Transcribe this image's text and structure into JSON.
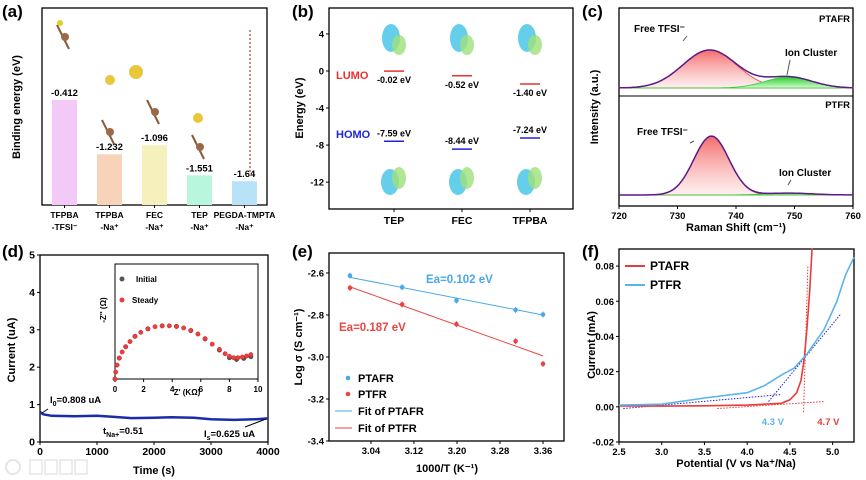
{
  "panel_labels": [
    "(a)",
    "(b)",
    "(c)",
    "(d)",
    "(e)",
    "(f)"
  ],
  "watermark": "大数跨境",
  "chart_data": [
    {
      "panel": "(a)",
      "type": "bar",
      "ylabel": "Binding energy (eV)",
      "ylim": [
        -2.0,
        0.98
      ],
      "categories": [
        [
          "TFPBA",
          "-TFSI⁻"
        ],
        [
          "TFPBA",
          "-Na⁺"
        ],
        [
          "FEC",
          "-Na⁺"
        ],
        [
          "TEP",
          "-Na⁺"
        ],
        [
          "PEGDA-TMPTA",
          "-Na⁺"
        ]
      ],
      "values": [
        -0.412,
        -1.232,
        -1.096,
        -1.551,
        -1.64
      ],
      "value_labels": [
        "-0.412",
        "-1.232",
        "-1.096",
        "-1.551",
        "-1.64"
      ],
      "colors": [
        "#f2c9f7",
        "#f8d3ba",
        "#f6f1bc",
        "#b8f6dd",
        "#b8e2f8"
      ]
    },
    {
      "panel": "(b)",
      "type": "level-diagram",
      "ylabel": "Energy (eV)",
      "ylim": [
        -14.9,
        6.8
      ],
      "y_tick_labels": [
        "4",
        "0",
        "-4",
        "-8",
        "-12"
      ],
      "categories": [
        "TEP",
        "FEC",
        "TFPBA"
      ],
      "lumo_label": "LUMO",
      "homo_label": "HOMO",
      "lumo": [
        -0.02,
        -0.52,
        -1.4
      ],
      "lumo_labels": [
        "-0.02 eV",
        "-0.52 eV",
        "-1.40 eV"
      ],
      "homo": [
        -7.59,
        -8.44,
        -7.24
      ],
      "homo_labels": [
        "-7.59 eV",
        "-8.44 eV",
        "-7.24 eV"
      ],
      "colors": {
        "lumo": "#e8322f",
        "homo": "#2323d6"
      }
    },
    {
      "panel": "(c)",
      "type": "line",
      "xlabel": "Raman Shift (cm⁻¹)",
      "ylabel": "Intensity (a.u.)",
      "xlim": [
        720,
        760
      ],
      "x_tick_labels": [
        "720",
        "730",
        "740",
        "750",
        "760"
      ],
      "series": [
        {
          "name": "PTAFR",
          "peaks": [
            {
              "label": "Free TFSI⁻",
              "center": 735.5,
              "height": 1.0,
              "sigma": 4.6
            },
            {
              "label": "Ion Cluster",
              "center": 749,
              "height": 0.29,
              "sigma": 4.0
            }
          ]
        },
        {
          "name": "PTFR",
          "peaks": [
            {
              "label": "Free TFSI⁻",
              "center": 735.8,
              "height": 1.55,
              "sigma": 3.0
            },
            {
              "label": "Ion Cluster",
              "center": 749,
              "height": 0.05,
              "sigma": 4.0
            }
          ]
        }
      ],
      "colors": {
        "envelope": "#5b1a86",
        "free": "#ee3b3b",
        "cluster": "#2ed12e"
      }
    },
    {
      "panel": "(d)",
      "type": "line",
      "xlabel": "Time (s)",
      "ylabel": "Current (uA)",
      "xlim": [
        0,
        4000
      ],
      "ylim": [
        0,
        5
      ],
      "x_tick_labels": [
        "0",
        "1000",
        "2000",
        "3000",
        "4000"
      ],
      "y_tick_labels": [
        "0",
        "1",
        "2",
        "3",
        "4",
        "5"
      ],
      "series": [
        {
          "name": "Current",
          "color": "#1c2ca8",
          "points": [
            [
              0,
              0.8
            ],
            [
              60,
              0.74
            ],
            [
              200,
              0.7
            ],
            [
              600,
              0.69
            ],
            [
              1000,
              0.7
            ],
            [
              1300,
              0.67
            ],
            [
              1600,
              0.64
            ],
            [
              2000,
              0.65
            ],
            [
              2300,
              0.66
            ],
            [
              2700,
              0.65
            ],
            [
              3000,
              0.61
            ],
            [
              3400,
              0.59
            ],
            [
              3800,
              0.61
            ],
            [
              4000,
              0.63
            ]
          ]
        }
      ],
      "annotations": {
        "i0": {
          "main": "I",
          "sub": "0",
          "rest": "=0.808 uA"
        },
        "t": {
          "main": "t",
          "sub": "Na+",
          "rest": "=0.51"
        },
        "is": {
          "main": "I",
          "sub": "s",
          "rest": "=0.625 uA"
        }
      },
      "inset": {
        "type": "scatter",
        "xlabel": "Z' (KΩ)",
        "ylabel": "-Z'' (Ω)",
        "xlim": [
          0,
          10
        ],
        "ylim": [
          0,
          6.6
        ],
        "x_tick_labels": [
          "0",
          "2",
          "4",
          "6",
          "8",
          "10"
        ],
        "series": [
          {
            "name": "Initial",
            "color": "#555555",
            "points": [
              [
                0,
                0
              ],
              [
                0.3,
                1.2
              ],
              [
                0.75,
                1.85
              ],
              [
                1.4,
                2.45
              ],
              [
                2.3,
                2.88
              ],
              [
                3.3,
                3.05
              ],
              [
                4.3,
                3.02
              ],
              [
                5.3,
                2.78
              ],
              [
                6.3,
                2.3
              ],
              [
                7.3,
                1.66
              ],
              [
                8.0,
                1.22
              ],
              [
                8.5,
                1.12
              ],
              [
                9.0,
                1.18
              ],
              [
                9.5,
                1.28
              ]
            ]
          },
          {
            "name": "Steady",
            "color": "#e84040",
            "points": [
              [
                0,
                0
              ],
              [
                0.05,
                0.4
              ],
              [
                0.15,
                0.8
              ],
              [
                0.3,
                1.2
              ],
              [
                0.5,
                1.55
              ],
              [
                0.75,
                1.85
              ],
              [
                1.05,
                2.15
              ],
              [
                1.4,
                2.45
              ],
              [
                1.8,
                2.68
              ],
              [
                2.3,
                2.88
              ],
              [
                2.8,
                3.0
              ],
              [
                3.3,
                3.05
              ],
              [
                3.8,
                3.05
              ],
              [
                4.3,
                3.02
              ],
              [
                4.8,
                2.93
              ],
              [
                5.3,
                2.78
              ],
              [
                5.8,
                2.58
              ],
              [
                6.3,
                2.32
              ],
              [
                6.8,
                2.0
              ],
              [
                7.3,
                1.7
              ],
              [
                7.7,
                1.45
              ],
              [
                8.0,
                1.3
              ],
              [
                8.3,
                1.22
              ],
              [
                8.6,
                1.22
              ],
              [
                8.9,
                1.26
              ],
              [
                9.2,
                1.32
              ],
              [
                9.5,
                1.4
              ]
            ]
          }
        ]
      }
    },
    {
      "panel": "(e)",
      "type": "scatter",
      "xlabel": "1000/T (K⁻¹)",
      "ylabel": "Log σ (S cm⁻¹)",
      "xlim": [
        2.962,
        3.399
      ],
      "ylim": [
        -3.4,
        -2.505
      ],
      "x_tick_labels": [
        "3.04",
        "3.12",
        "3.20",
        "3.28",
        "3.36"
      ],
      "y_tick_labels": [
        "-2.6",
        "-2.8",
        "-3.0",
        "-3.2",
        "-3.4"
      ],
      "series": [
        {
          "name": "PTAFR",
          "color": "#4aa8e8",
          "x": [
            3.001,
            3.098,
            3.199,
            3.309,
            3.36
          ],
          "y": [
            -2.613,
            -2.668,
            -2.731,
            -2.776,
            -2.798
          ],
          "fit": [
            [
              3.0,
              -2.62
            ],
            [
              3.36,
              -2.8
            ]
          ],
          "fit_name": "Fit of PTAFR"
        },
        {
          "name": "PTFR",
          "color": "#e84545",
          "x": [
            3.001,
            3.098,
            3.199,
            3.309,
            3.36
          ],
          "y": [
            -2.671,
            -2.75,
            -2.844,
            -2.925,
            -3.033
          ],
          "fit": [
            [
              3.0,
              -2.665
            ],
            [
              3.36,
              -2.995
            ]
          ],
          "fit_name": "Fit of PTFR"
        }
      ],
      "annotations": [
        "Ea=0.102 eV",
        "Ea=0.187 eV"
      ]
    },
    {
      "panel": "(f)",
      "type": "line",
      "xlabel": "Potential (V vs Na⁺/Na)",
      "ylabel": "Current (mA)",
      "xlim": [
        2.5,
        5.25
      ],
      "ylim": [
        -0.02,
        0.0897
      ],
      "x_tick_labels": [
        "2.5",
        "3.0",
        "3.5",
        "4.0",
        "4.5",
        "5.0"
      ],
      "y_tick_labels": [
        "-0.02",
        "0.00",
        "0.02",
        "0.04",
        "0.06",
        "0.08"
      ],
      "series": [
        {
          "name": "PTAFR",
          "color": "#e83c3c",
          "points": [
            [
              2.5,
              0.0005
            ],
            [
              3.0,
              0.0004
            ],
            [
              3.5,
              0.0006
            ],
            [
              4.0,
              0.001
            ],
            [
              4.4,
              0.002
            ],
            [
              4.5,
              0.004
            ],
            [
              4.58,
              0.008
            ],
            [
              4.63,
              0.015
            ],
            [
              4.67,
              0.028
            ],
            [
              4.7,
              0.045
            ],
            [
              4.73,
              0.065
            ],
            [
              4.76,
              0.09
            ]
          ]
        },
        {
          "name": "PTFR",
          "color": "#5ab4ec",
          "points": [
            [
              2.5,
              0.001
            ],
            [
              3.0,
              0.0015
            ],
            [
              3.5,
              0.005
            ],
            [
              4.0,
              0.008
            ],
            [
              4.2,
              0.012
            ],
            [
              4.4,
              0.018
            ],
            [
              4.55,
              0.022
            ],
            [
              4.7,
              0.03
            ],
            [
              4.9,
              0.044
            ],
            [
              5.05,
              0.06
            ],
            [
              5.15,
              0.075
            ],
            [
              5.25,
              0.085
            ]
          ]
        }
      ],
      "tangents": [
        {
          "color": "#2323c8",
          "from": [
            2.55,
            -0.001
          ],
          "to": [
            4.4,
            0.007
          ]
        },
        {
          "color": "#2323c8",
          "from": [
            4.25,
            0.003
          ],
          "to": [
            5.1,
            0.053
          ]
        },
        {
          "color": "#e83c3c",
          "from": [
            3.65,
            -0.001
          ],
          "to": [
            4.9,
            0.003
          ]
        },
        {
          "color": "#e83c3c",
          "from": [
            4.66,
            -0.003
          ],
          "to": [
            4.71,
            0.08
          ]
        }
      ],
      "annotations": [
        {
          "text": "4.3 V",
          "x": 4.3,
          "y": -0.007,
          "color": "#5ab4ec"
        },
        {
          "text": "4.7 V",
          "x": 4.95,
          "y": -0.007,
          "color": "#e83c3c"
        }
      ]
    }
  ]
}
